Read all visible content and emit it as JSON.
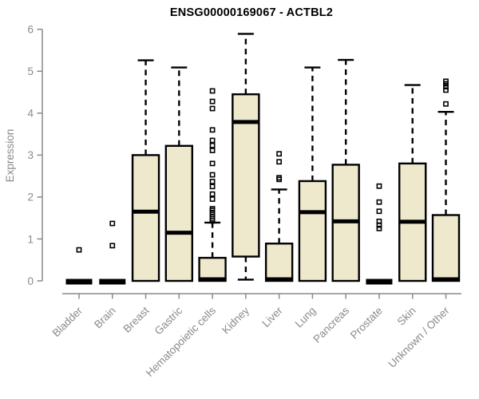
{
  "title": "ENSG00000169067 - ACTBL2",
  "chart_data": {
    "type": "boxplot",
    "title": "ENSG00000169067 - ACTBL2",
    "xlabel": "",
    "ylabel": "Expression",
    "ylim": [
      0,
      6
    ],
    "yticks": [
      0,
      1,
      2,
      3,
      4,
      5,
      6
    ],
    "grid": false,
    "legend": "none",
    "colors": {
      "box_fill": "#EEE8CD",
      "box_stroke": "#000000",
      "axis": "#8a8a8a",
      "tick_label": "#8a8a8a",
      "title": "#000000"
    },
    "categories": [
      "Bladder",
      "Brain",
      "Breast",
      "Gastric",
      "Hematopoietic cells",
      "Kidney",
      "Liver",
      "Lung",
      "Pancreas",
      "Prostate",
      "Skin",
      "Unknown / Other"
    ],
    "boxes": [
      {
        "label": "Bladder",
        "q1": 0,
        "median": 0,
        "q3": 0,
        "whisker_low": 0,
        "whisker_high": 0,
        "outliers": [
          0.74
        ]
      },
      {
        "label": "Brain",
        "q1": 0,
        "median": 0,
        "q3": 0,
        "whisker_low": 0,
        "whisker_high": 0,
        "outliers": [
          1.37,
          0.84
        ]
      },
      {
        "label": "Breast",
        "q1": 0,
        "median": 1.65,
        "q3": 3.0,
        "whisker_low": 0,
        "whisker_high": 5.26,
        "outliers": []
      },
      {
        "label": "Gastric",
        "q1": 0,
        "median": 1.15,
        "q3": 3.22,
        "whisker_low": 0,
        "whisker_high": 5.09,
        "outliers": []
      },
      {
        "label": "Hematopoietic cells",
        "q1": 0,
        "median": 0.02,
        "q3": 0.55,
        "whisker_low": 0,
        "whisker_high": 1.39,
        "outliers": [
          4.53,
          4.28,
          4.11,
          3.6,
          3.35,
          3.23,
          3.11,
          2.8,
          2.53,
          2.37,
          2.25,
          2.07,
          1.95,
          1.72,
          1.68,
          1.63,
          1.58,
          1.53,
          1.48,
          1.43
        ]
      },
      {
        "label": "Kidney",
        "q1": 0.58,
        "median": 3.79,
        "q3": 4.45,
        "whisker_low": 0.03,
        "whisker_high": 5.89,
        "outliers": []
      },
      {
        "label": "Liver",
        "q1": 0,
        "median": 0.02,
        "q3": 0.89,
        "whisker_low": 0,
        "whisker_high": 2.18,
        "outliers": [
          3.03,
          2.84,
          2.46,
          2.42
        ]
      },
      {
        "label": "Lung",
        "q1": 0,
        "median": 1.64,
        "q3": 2.38,
        "whisker_low": 0,
        "whisker_high": 5.09,
        "outliers": []
      },
      {
        "label": "Pancreas",
        "q1": 0,
        "median": 1.42,
        "q3": 2.77,
        "whisker_low": 0,
        "whisker_high": 5.27,
        "outliers": []
      },
      {
        "label": "Prostate",
        "q1": 0,
        "median": 0,
        "q3": 0,
        "whisker_low": 0,
        "whisker_high": 0,
        "outliers": [
          2.26,
          1.88,
          1.66,
          1.42,
          1.33,
          1.25
        ]
      },
      {
        "label": "Skin",
        "q1": 0,
        "median": 1.41,
        "q3": 2.8,
        "whisker_low": 0,
        "whisker_high": 4.67,
        "outliers": []
      },
      {
        "label": "Unknown / Other",
        "q1": 0,
        "median": 0.02,
        "q3": 1.57,
        "whisker_low": 0,
        "whisker_high": 4.03,
        "outliers": [
          4.76,
          4.7,
          4.63,
          4.55,
          4.22
        ]
      }
    ]
  }
}
